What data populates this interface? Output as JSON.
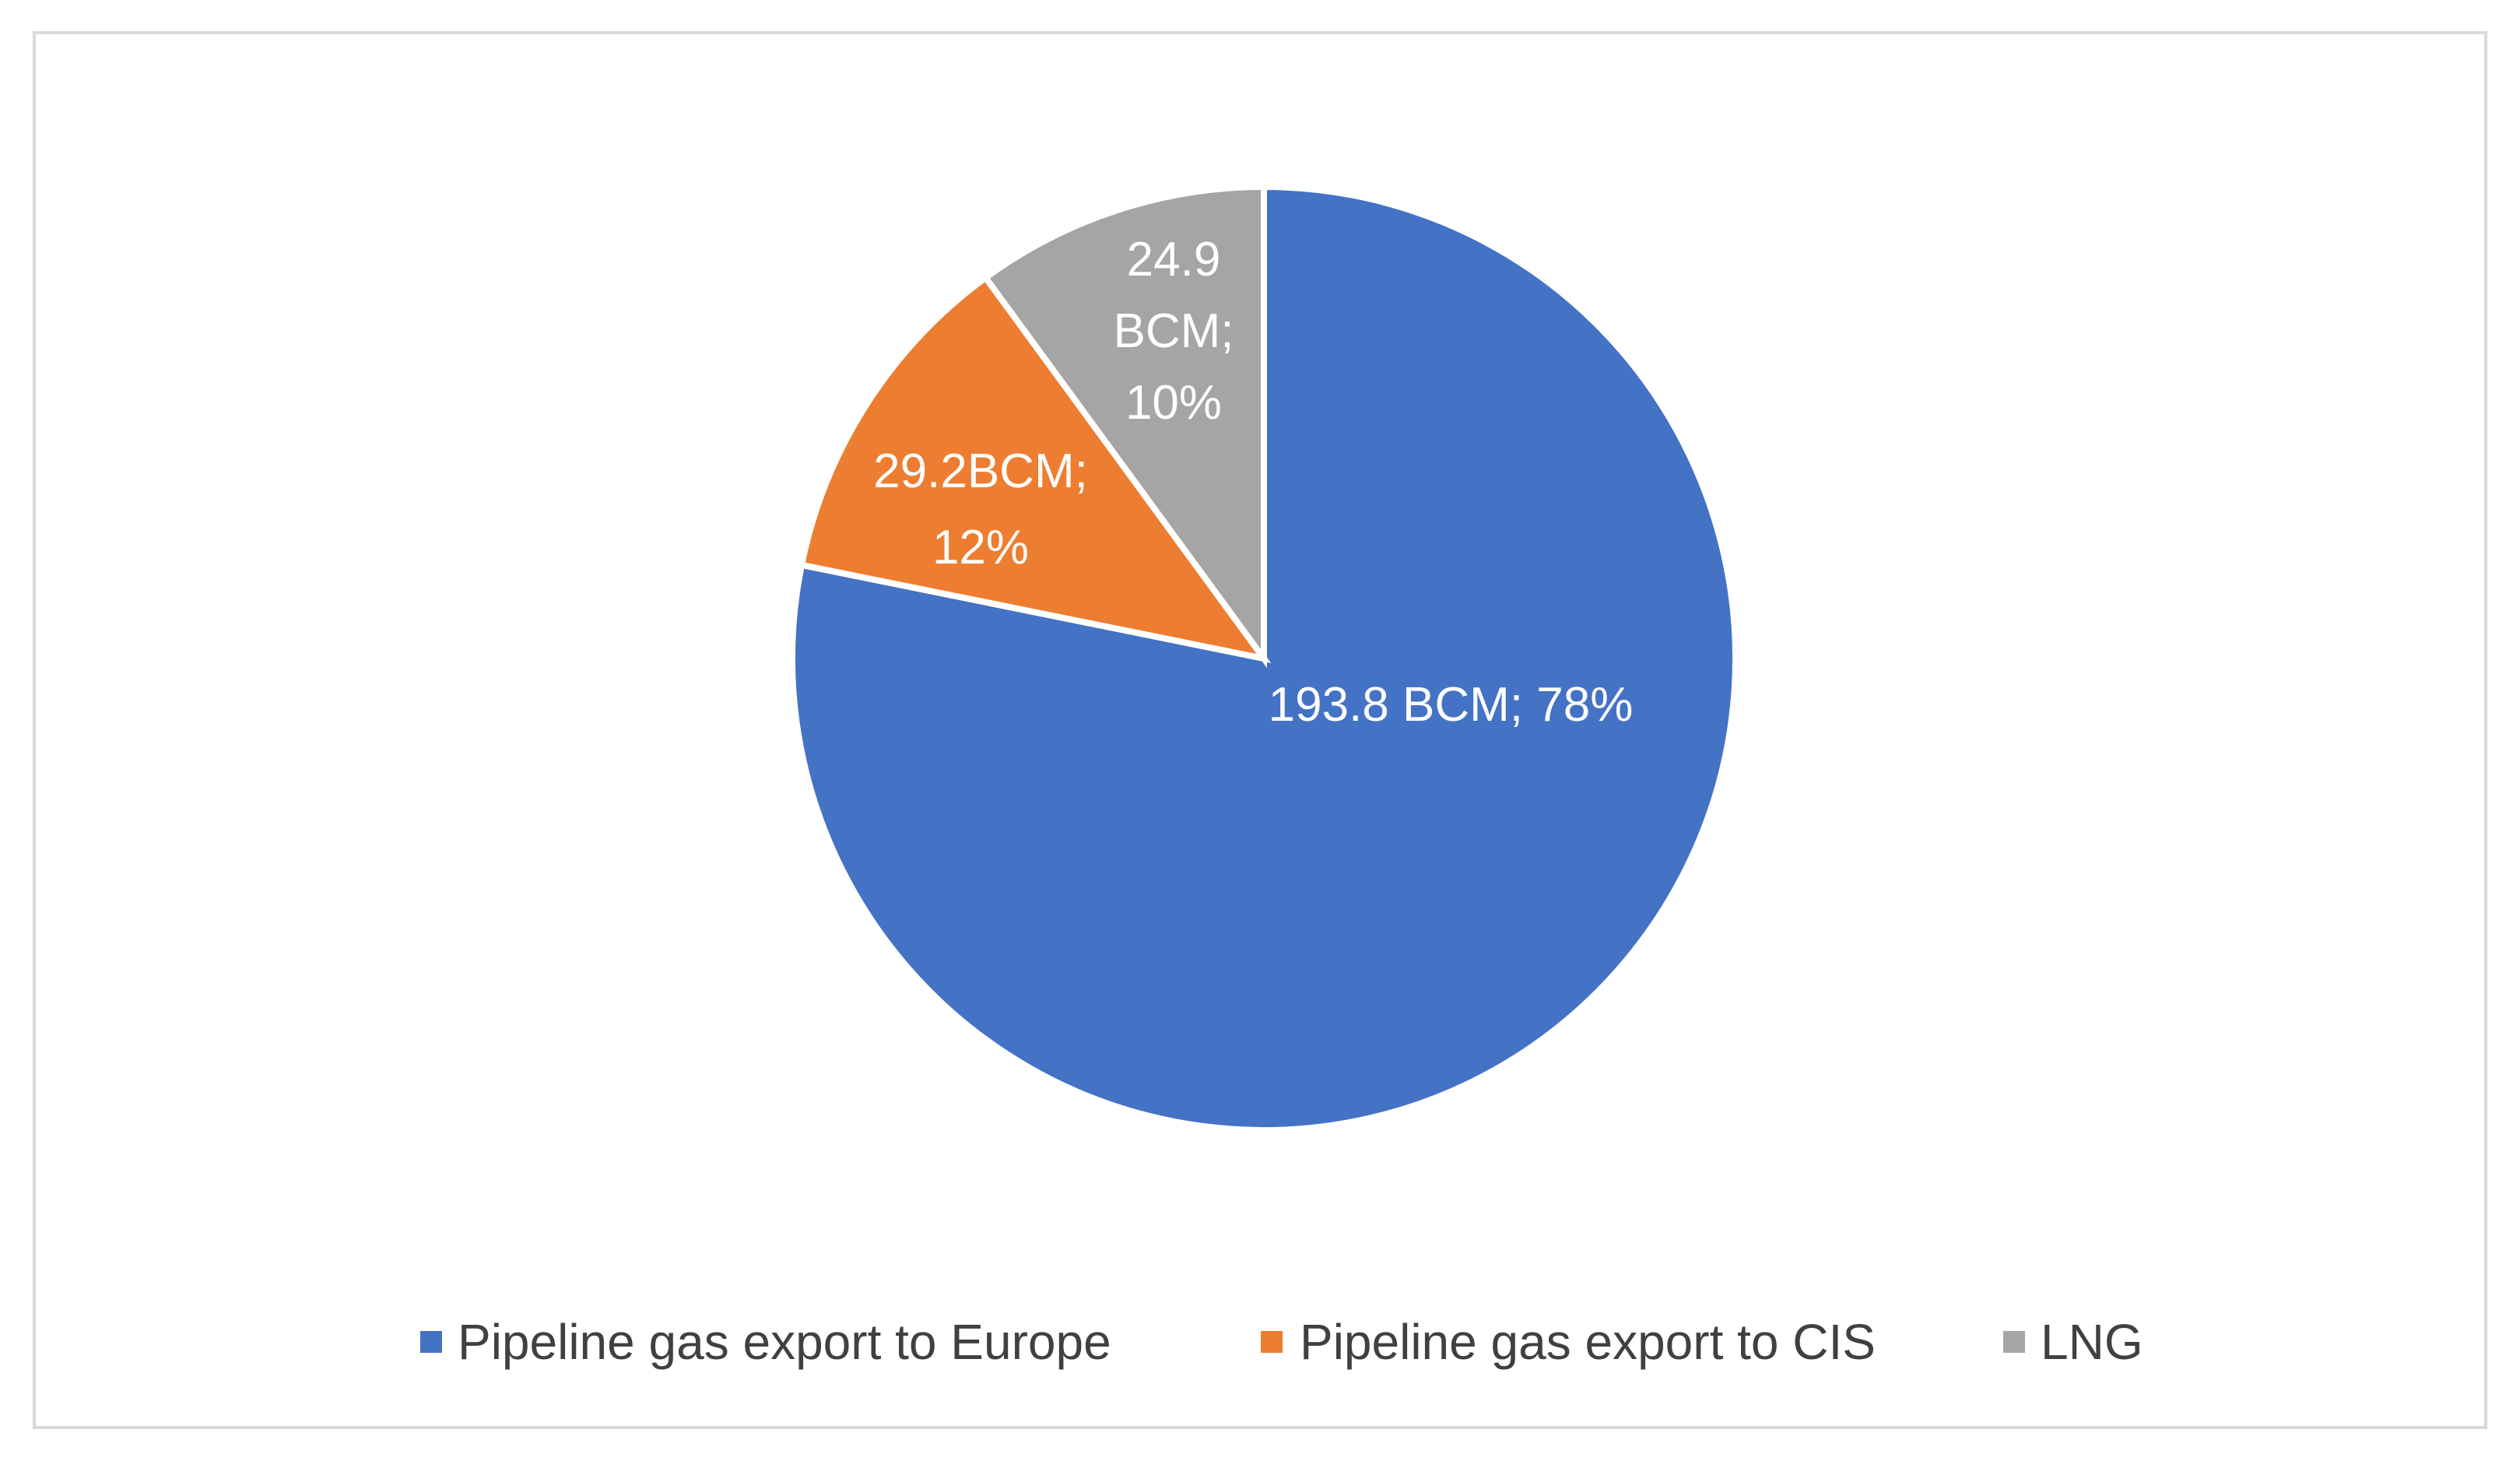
{
  "chart_data": {
    "type": "pie",
    "title": "",
    "legend_position": "bottom",
    "slices": [
      {
        "name": "Pipeline gas export to Europe",
        "value": 193.8,
        "percent": 78,
        "label_lines": [
          "193.8 BCM; 78%"
        ],
        "color": "#4472c4"
      },
      {
        "name": "Pipeline gas export to CIS",
        "value": 29.2,
        "percent": 12,
        "label_lines": [
          "29.2BCM;",
          "12%"
        ],
        "color": "#ed7d31"
      },
      {
        "name": "LNG",
        "value": 24.9,
        "percent": 10,
        "label_lines": [
          "24.9",
          "BCM;",
          "10%"
        ],
        "color": "#a5a5a5"
      }
    ]
  }
}
